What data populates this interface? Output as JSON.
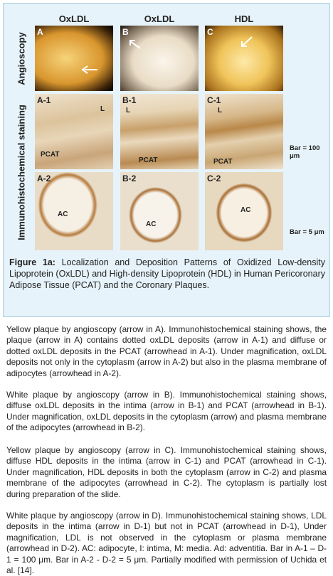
{
  "figure": {
    "column_headers": [
      "OxLDL",
      "OxLDL",
      "HDL"
    ],
    "row_labels": [
      "Angioscopy",
      "Immunohistochemical staining"
    ],
    "panels": [
      {
        "label": "A",
        "annotations": []
      },
      {
        "label": "B",
        "annotations": []
      },
      {
        "label": "C",
        "annotations": []
      },
      {
        "label": "A-1",
        "annotations": [
          "L",
          "PCAT"
        ]
      },
      {
        "label": "B-1",
        "annotations": [
          "L",
          "PCAT"
        ]
      },
      {
        "label": "C-1",
        "annotations": [
          "L",
          "PCAT"
        ]
      },
      {
        "label": "A-2",
        "annotations": [
          "AC"
        ]
      },
      {
        "label": "B-2",
        "annotations": [
          "AC"
        ]
      },
      {
        "label": "C-2",
        "annotations": [
          "AC"
        ]
      }
    ],
    "scale_bars": [
      "Bar = 100 μm",
      "Bar =  5 μm"
    ]
  },
  "caption": {
    "label": "Figure 1a:",
    "text": "Localization and Deposition Patterns of Oxidized Low-density Lipoprotein (OxLDL) and High-density Lipoprotein (HDL) in Human Pericoronary Adipose Tissue (PCAT) and the Coronary Plaques."
  },
  "paragraphs": [
    "Yellow plaque by angioscopy (arrow in A). Immunohistochemical staining shows, the plaque (arrow in A) contains dotted oxLDL deposits (arrow in A-1) and diffuse or dotted oxLDL deposits in the PCAT (arrowhead in A-1). Under magnification, oxLDL deposits not only in the cytoplasm (arrow in A-2) but also in the plasma membrane of adipocytes (arrowhead in A-2).",
    "White plaque by angioscopy (arrow in B). Immunohistochemical staining shows, diffuse oxLDL deposits in the intima (arrow in B-1) and PCAT (arrowhead in B-1). Under magnification, oxLDL deposits in the cytoplasm (arrow) and plasma membrane of the adipocytes (arrowhead in B-2).",
    "Yellow plaque by angioscopy (arrow in C). Immunohistochemical staining shows, diffuse HDL deposits in the intima (arrow in C-1) and PCAT (arrowhead in C-1). Under magnification, HDL deposits in both the cytoplasm (arrow in C-2) and plasma membrane of the adipocytes (arrowhead in C-2). The cytoplasm is partially lost during preparation of the slide.",
    "White plaque by angioscopy (arrow in D). Immunohistochemical staining shows, LDL deposits in the intima (arrow in D-1) but not in PCAT (arrowhead in D-1), Under magnification, LDL is not observed in the cytoplasm or plasma membrane (arrowhead in D-2). AC: adipocyte, I: intima, M: media. Ad: adventitia. Bar in A-1 – D-1 = 100 μm. Bar in A-2 - D-2 = 5 μm. Partially modified with permission of Uchida et al. [14]."
  ]
}
